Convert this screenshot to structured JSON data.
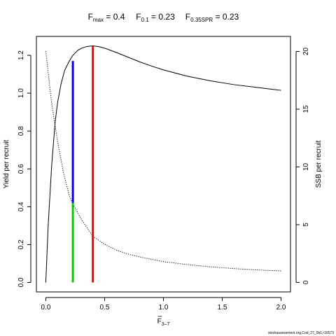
{
  "chart_data": {
    "type": "line",
    "title_parts": [
      {
        "main": "F",
        "sub": "max",
        "rest": " = 0.4"
      },
      {
        "main": "F",
        "sub": "0.1",
        "rest": " = 0.23"
      },
      {
        "main": "F",
        "sub": "0.35SPR",
        "rest": " = 0.23"
      }
    ],
    "xlabel": {
      "main": "F",
      "sub": "3–7"
    },
    "ylabel": "Yield per recruit",
    "y2label": "SSB per recruit",
    "xlim": [
      -0.08,
      2.08
    ],
    "ylim": [
      -0.05,
      1.3
    ],
    "y2lim": [
      -0.82,
      21.3
    ],
    "x_ticks": [
      0,
      0.5,
      1,
      1.5,
      2
    ],
    "x_tick_labels": [
      "0.0",
      "0.5",
      "1.0",
      "1.5",
      "2.0"
    ],
    "y_ticks": [
      0,
      0.2,
      0.4,
      0.6,
      0.8,
      1.0,
      1.2
    ],
    "y_tick_labels": [
      "0.0",
      "0.2",
      "0.4",
      "0.6",
      "0.8",
      "1.0",
      "1.2"
    ],
    "y2_ticks": [
      0,
      5,
      10,
      15,
      20
    ],
    "y2_tick_labels": [
      "0",
      "5",
      "10",
      "15",
      "20"
    ],
    "grid": false,
    "series": [
      {
        "axis": "left",
        "style": "solid",
        "color": "#000000",
        "x": [
          0,
          0.02,
          0.05,
          0.08,
          0.1,
          0.13,
          0.16,
          0.2,
          0.23,
          0.27,
          0.3,
          0.35,
          0.4,
          0.45,
          0.5,
          0.6,
          0.7,
          0.8,
          0.9,
          1.0,
          1.2,
          1.4,
          1.6,
          1.8,
          2.0
        ],
        "values": [
          0,
          0.3,
          0.62,
          0.85,
          0.95,
          1.05,
          1.12,
          1.17,
          1.2,
          1.225,
          1.237,
          1.247,
          1.25,
          1.246,
          1.238,
          1.215,
          1.19,
          1.165,
          1.143,
          1.123,
          1.09,
          1.065,
          1.045,
          1.03,
          1.015
        ]
      },
      {
        "axis": "right",
        "style": "dotted",
        "color": "#000000",
        "x": [
          0,
          0.05,
          0.1,
          0.15,
          0.2,
          0.23,
          0.3,
          0.4,
          0.5,
          0.6,
          0.7,
          0.8,
          1.0,
          1.2,
          1.4,
          1.6,
          1.8,
          2.0
        ],
        "values": [
          20,
          15.5,
          12.2,
          9.5,
          7.5,
          6.8,
          5.5,
          4.0,
          3.3,
          2.8,
          2.45,
          2.2,
          1.8,
          1.55,
          1.35,
          1.2,
          1.08,
          1.0
        ]
      }
    ],
    "reference_lines": [
      {
        "name": "F0.1 yield",
        "x": 0.23,
        "y_from": 0.42,
        "y_to": 1.17,
        "color": "#0000ff"
      },
      {
        "name": "F0.35SPR",
        "x": 0.23,
        "y_from": 0,
        "y_to": 0.42,
        "color": "#00cc00"
      },
      {
        "name": "Fmax",
        "x": 0.4,
        "y_from": 0,
        "y_to": 1.25,
        "color": "#ff0000"
      }
    ],
    "footer_text": "stockassessment.org,Cod_27_5b1,r16573"
  }
}
